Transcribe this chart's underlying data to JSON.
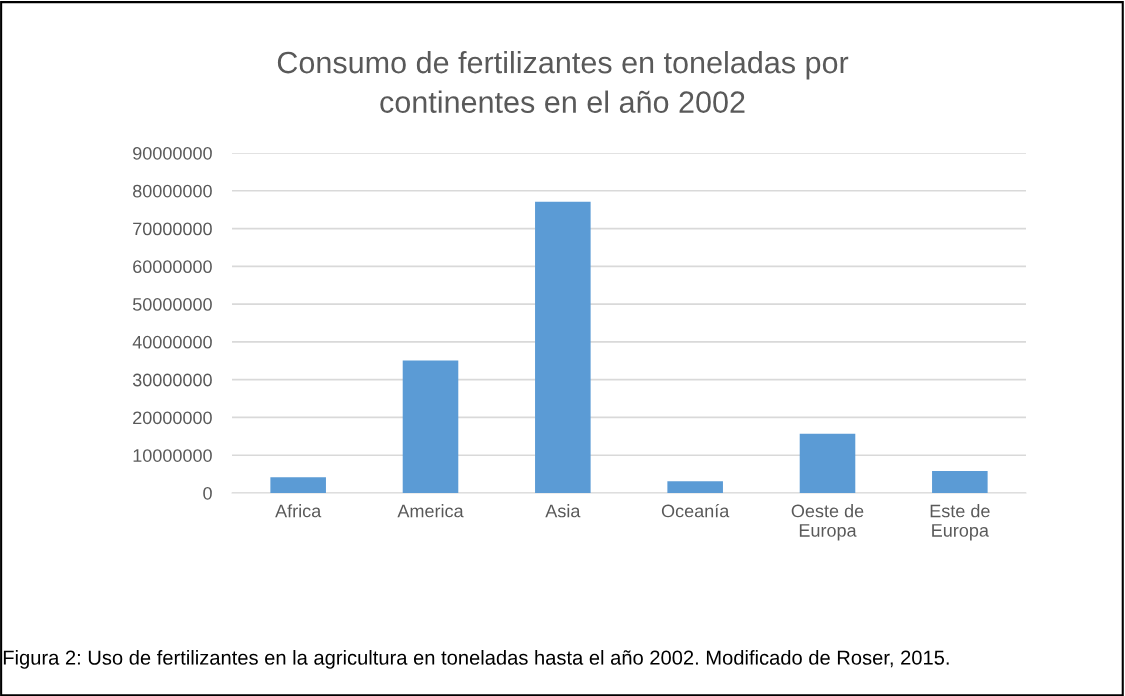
{
  "chart_data": {
    "type": "bar",
    "title": "Consumo de fertilizantes en toneladas por\ncontinentes en el año 2002",
    "categories": [
      "Africa",
      "America",
      "Asia",
      "Oceanía",
      "Oeste de\nEuropa",
      "Este de\nEuropa"
    ],
    "values": [
      4200000,
      35100000,
      77100000,
      3100000,
      15700000,
      5800000
    ],
    "color": "#5b9bd5",
    "ylim": [
      0,
      90000000
    ],
    "yticks": [
      0,
      10000000,
      20000000,
      30000000,
      40000000,
      50000000,
      60000000,
      70000000,
      80000000,
      90000000
    ],
    "grid": "y",
    "annotations": [
      "Figura 2: Uso de fertilizantes en la agricultura en toneladas hasta el año 2002. Modificado de Roser, 2015."
    ]
  }
}
